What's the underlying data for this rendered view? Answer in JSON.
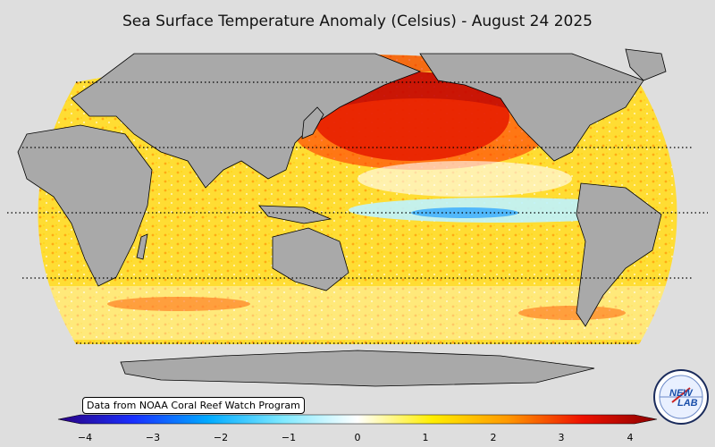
{
  "title": "Sea Surface Temperature Anomaly (Celsius) - August 24 2025",
  "credit": "Data from NOAA Coral Reef Watch Program",
  "colorbar": {
    "min": -4,
    "max": 4,
    "ticks": [
      "−4",
      "−3",
      "−2",
      "−1",
      "0",
      "1",
      "2",
      "3",
      "4"
    ],
    "colors": [
      "#2a0080",
      "#1a2fff",
      "#00aaff",
      "#7fe9ff",
      "#ffffff",
      "#ffee00",
      "#ff9900",
      "#ee1100",
      "#8b0000"
    ]
  },
  "logo": {
    "line1": "NEW",
    "line2": "LAB"
  },
  "colors": {
    "background": "#dedede",
    "land": "#a9a9a9",
    "ocean_warm": "#ffd000",
    "hot_anomaly": "#c40000"
  }
}
